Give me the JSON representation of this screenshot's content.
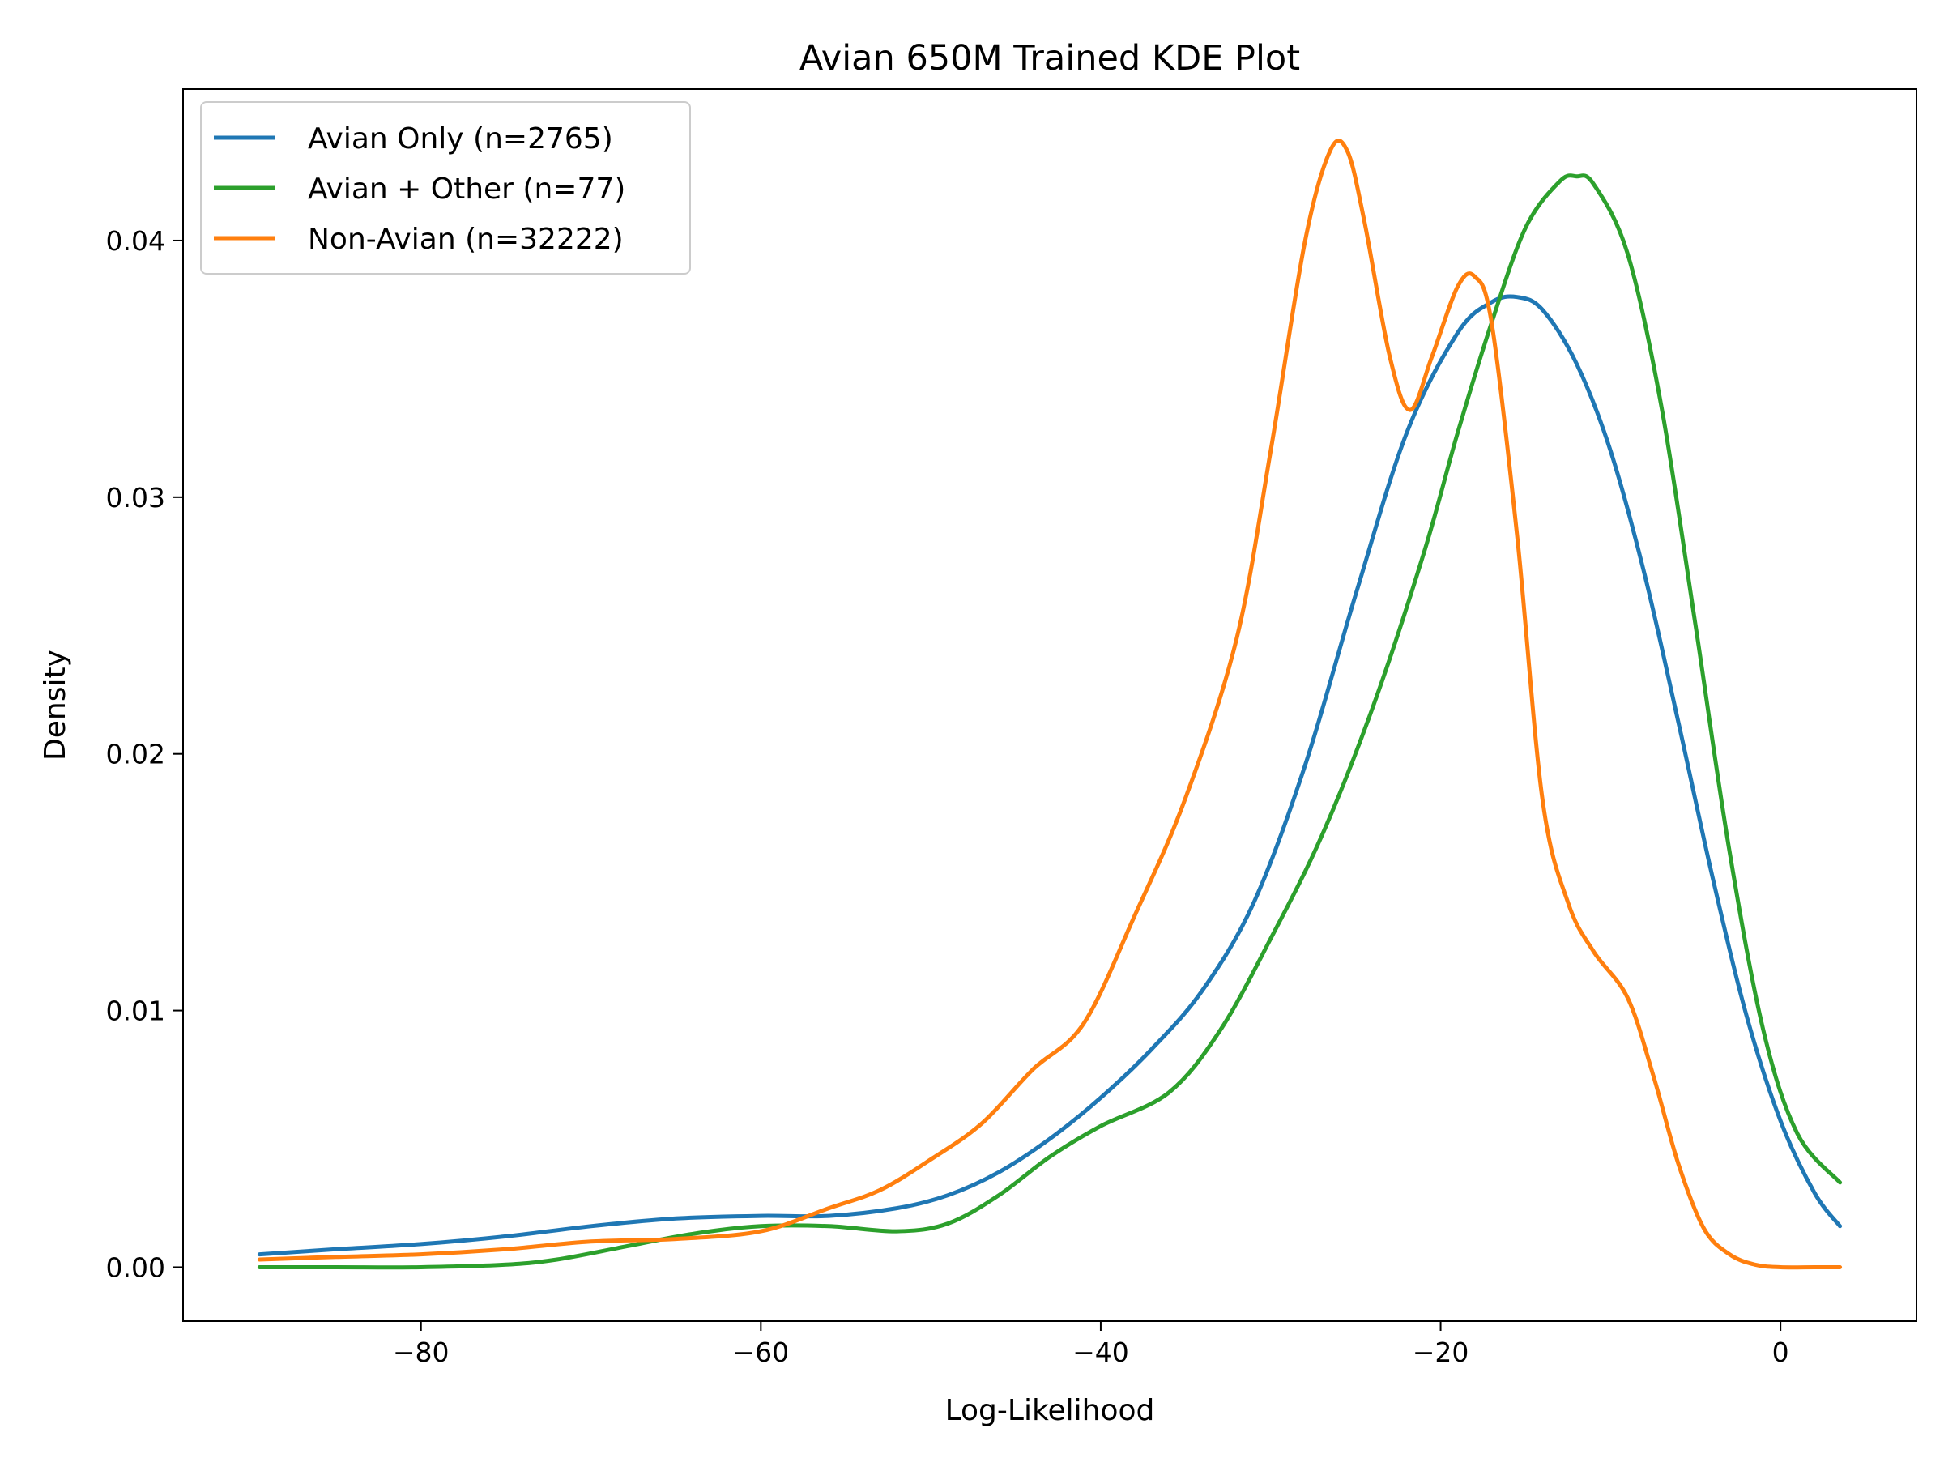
{
  "chart_data": {
    "type": "line",
    "title": "Avian 650M Trained KDE Plot",
    "xlabel": "Log-Likelihood",
    "ylabel": "Density",
    "xlim": [
      -94,
      8
    ],
    "ylim": [
      -0.0021,
      0.0459
    ],
    "xticks": [
      -80,
      -60,
      -40,
      -20,
      0
    ],
    "xtick_labels": [
      "−80",
      "−60",
      "−40",
      "−20",
      "0"
    ],
    "yticks": [
      0.0,
      0.01,
      0.02,
      0.03,
      0.04
    ],
    "ytick_labels": [
      "0.00",
      "0.01",
      "0.02",
      "0.03",
      "0.04"
    ],
    "grid": false,
    "legend_position": "top-left",
    "series": [
      {
        "name": "Avian Only (n=2765)",
        "color": "#1f77b4",
        "x": [
          -89.5,
          -85,
          -80,
          -75,
          -70,
          -65,
          -60,
          -56,
          -52,
          -49,
          -46,
          -43,
          -40,
          -37,
          -34,
          -31,
          -28,
          -25,
          -22,
          -19,
          -17,
          -15.5,
          -14,
          -12,
          -10,
          -8,
          -6,
          -4,
          -2,
          0,
          2,
          3.5
        ],
        "y": [
          0.0005,
          0.0007,
          0.0009,
          0.0012,
          0.0016,
          0.0019,
          0.002,
          0.002,
          0.0023,
          0.0028,
          0.0037,
          0.005,
          0.0066,
          0.0085,
          0.0108,
          0.0142,
          0.0195,
          0.0262,
          0.0325,
          0.0364,
          0.0376,
          0.0378,
          0.0373,
          0.0352,
          0.0318,
          0.027,
          0.0212,
          0.0152,
          0.0098,
          0.0057,
          0.0029,
          0.0016
        ]
      },
      {
        "name": "Avian + Other (n=77)",
        "color": "#2ca02c",
        "x": [
          -89.5,
          -85,
          -80,
          -75,
          -72,
          -68,
          -64,
          -60,
          -56,
          -52,
          -49,
          -46,
          -43,
          -40,
          -36,
          -33,
          -30,
          -27,
          -24,
          -21,
          -19,
          -17,
          -15,
          -13,
          -12,
          -11,
          -9,
          -7,
          -5,
          -3,
          -1,
          1,
          3.5
        ],
        "y": [
          0.0,
          0.0,
          0.0,
          0.0001,
          0.0003,
          0.0008,
          0.0013,
          0.0016,
          0.0016,
          0.0014,
          0.0017,
          0.0028,
          0.0043,
          0.0055,
          0.0068,
          0.0092,
          0.0128,
          0.0168,
          0.0218,
          0.0278,
          0.0325,
          0.0368,
          0.0405,
          0.0423,
          0.0425,
          0.0422,
          0.0395,
          0.0335,
          0.025,
          0.0162,
          0.0092,
          0.0052,
          0.0033
        ]
      },
      {
        "name": "Non-Avian (n=32222)",
        "color": "#ff7f0e",
        "x": [
          -89.5,
          -85,
          -80,
          -75,
          -70,
          -65,
          -60,
          -56,
          -53,
          -50,
          -47,
          -44,
          -41,
          -38,
          -35,
          -32,
          -30,
          -28,
          -26.5,
          -25.5,
          -24.5,
          -23,
          -21.8,
          -20.5,
          -19,
          -18,
          -17,
          -15.5,
          -14,
          -12.5,
          -11,
          -9,
          -7.5,
          -6,
          -4.5,
          -3,
          -1.5,
          0,
          2,
          3.5
        ],
        "y": [
          0.0003,
          0.0004,
          0.0005,
          0.0007,
          0.001,
          0.0011,
          0.0014,
          0.0023,
          0.003,
          0.0042,
          0.0056,
          0.0077,
          0.0095,
          0.0137,
          0.0183,
          0.0245,
          0.0318,
          0.0399,
          0.0435,
          0.0435,
          0.0408,
          0.0355,
          0.0334,
          0.0355,
          0.0382,
          0.0386,
          0.0368,
          0.0285,
          0.0182,
          0.0142,
          0.0123,
          0.0105,
          0.0075,
          0.004,
          0.0015,
          0.0005,
          0.0001,
          0.0,
          0.0,
          0.0
        ]
      }
    ]
  }
}
